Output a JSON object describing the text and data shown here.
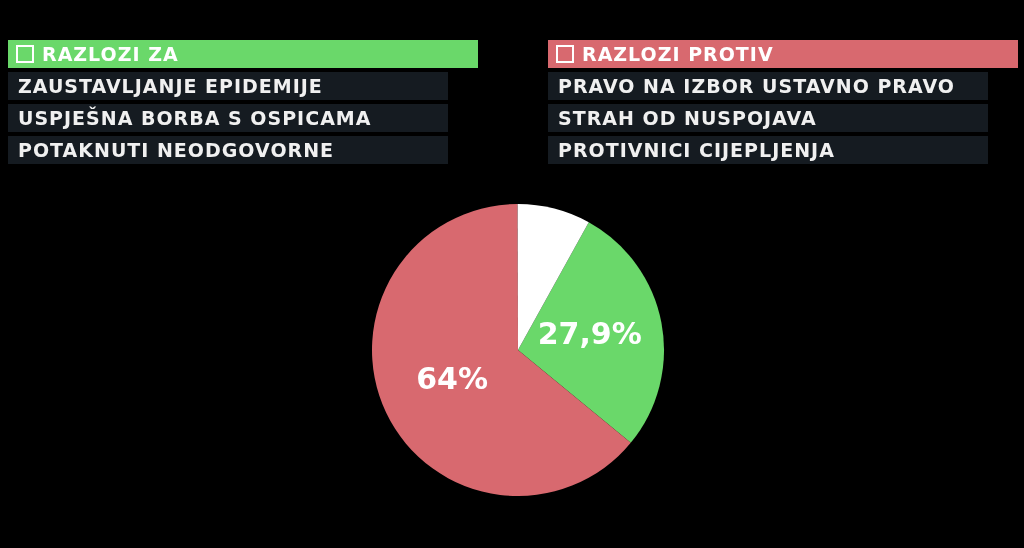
{
  "chart_data": {
    "type": "pie",
    "categories": [
      "RAZLOZI ZA",
      "RAZLOZI PROTIV",
      null
    ],
    "values": [
      27.9,
      64,
      8.1
    ],
    "colors": [
      "#6ad86a",
      "#d8696f",
      "#ffffff"
    ],
    "value_labels": [
      "27,9%",
      "64%",
      null
    ],
    "legend": "top",
    "annotations": [
      "ZAUSTAVLJANJE EPIDEMIJE",
      "USPJEŠNA BORBA S OSPICAMA",
      "POTAKNUTI NEODGOVORNE",
      "PRAVO NA IZBOR USTAVNO PRAVO",
      "STRAH OD NUSPOJAVA",
      "PROTIVNICI CIJEPLJENJA"
    ]
  }
}
